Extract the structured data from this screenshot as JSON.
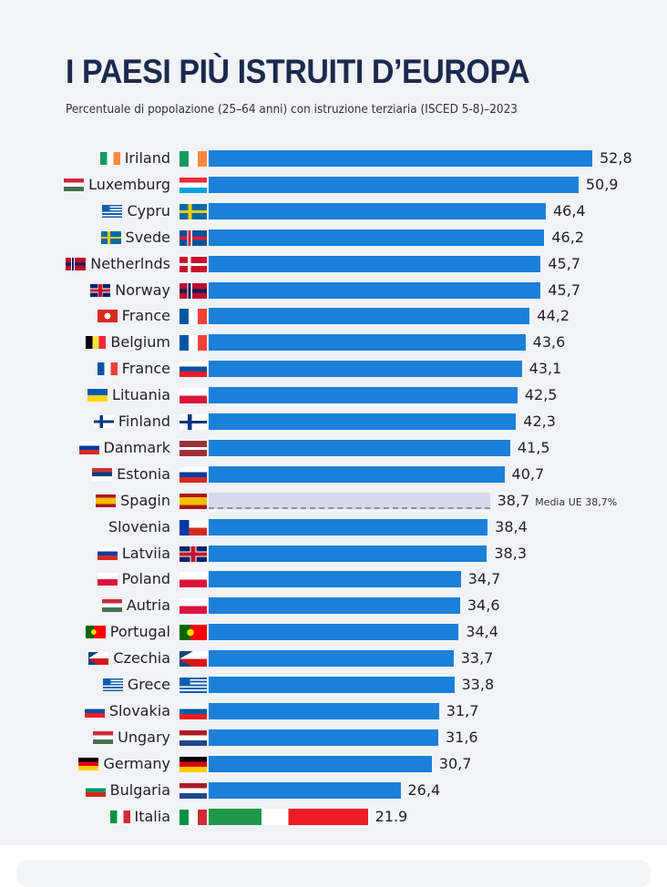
{
  "chart_data": {
    "type": "bar",
    "orientation": "horizontal",
    "title": "I PAESI PIÙ ISTRUITI D’EUROPA",
    "subtitle": "Percentuale di popolazione (25–64 anni) con istruzione terziaria (ISCED 5-8)–2023",
    "xlim": [
      0,
      55
    ],
    "grid": false,
    "bar_color": "#1a80d9",
    "average_color": "#d5d9e8",
    "average_note": "Media UE 38,7%",
    "rows": [
      {
        "label": "Iriland",
        "value": 52.8,
        "text": "52,8",
        "left_flag": "ireland",
        "right_flag": "ireland"
      },
      {
        "label": "Luxemburg",
        "value": 50.9,
        "text": "50,9",
        "left_flag": "hungary",
        "right_flag": "luxembourg"
      },
      {
        "label": "Cypru",
        "value": 46.4,
        "text": "46,4",
        "left_flag": "greece",
        "right_flag": "sweden"
      },
      {
        "label": "Svede",
        "value": 46.2,
        "text": "46,2",
        "left_flag": "sweden",
        "right_flag": "iceland"
      },
      {
        "label": "Netherlnds",
        "value": 45.7,
        "text": "45,7",
        "left_flag": "norway",
        "right_flag": "denmark"
      },
      {
        "label": "Norway",
        "value": 45.7,
        "text": "45,7",
        "left_flag": "uk",
        "right_flag": "norway"
      },
      {
        "label": "France",
        "value": 44.2,
        "text": "44,2",
        "left_flag": "switzerland",
        "right_flag": "france"
      },
      {
        "label": "Belgium",
        "value": 43.6,
        "text": "43,6",
        "left_flag": "belgium",
        "right_flag": "france"
      },
      {
        "label": "France",
        "value": 43.1,
        "text": "43,1",
        "left_flag": "france",
        "right_flag": "slovakia"
      },
      {
        "label": "Lituania",
        "value": 42.5,
        "text": "42,5",
        "left_flag": "ukraine",
        "right_flag": "poland"
      },
      {
        "label": "Finland",
        "value": 42.3,
        "text": "42,3",
        "left_flag": "finland",
        "right_flag": "finland"
      },
      {
        "label": "Danmark",
        "value": 41.5,
        "text": "41,5",
        "left_flag": "russia",
        "right_flag": "latvia"
      },
      {
        "label": "Estonia",
        "value": 40.7,
        "text": "40,7",
        "left_flag": "serbia",
        "right_flag": "russia"
      },
      {
        "label": "Spagin",
        "value": 38.7,
        "text": "38,7",
        "left_flag": "spain",
        "right_flag": "spain",
        "average": true
      },
      {
        "label": "Slovenia",
        "value": 38.4,
        "text": "38,4",
        "left_flag": "",
        "right_flag": "chile"
      },
      {
        "label": "Latviia",
        "value": 38.3,
        "text": "38,3",
        "left_flag": "russia",
        "right_flag": "uk"
      },
      {
        "label": "Poland",
        "value": 34.7,
        "text": "34,7",
        "left_flag": "poland",
        "right_flag": "poland"
      },
      {
        "label": "Autria",
        "value": 34.6,
        "text": "34,6",
        "left_flag": "hungary",
        "right_flag": "poland"
      },
      {
        "label": "Portugal",
        "value": 34.4,
        "text": "34,4",
        "left_flag": "portugal",
        "right_flag": "portugal"
      },
      {
        "label": "Czechia",
        "value": 33.7,
        "text": "33,7",
        "left_flag": "czech",
        "right_flag": "czech"
      },
      {
        "label": "Grece",
        "value": 33.8,
        "text": "33,8",
        "left_flag": "greece",
        "right_flag": "greece"
      },
      {
        "label": "Slovakia",
        "value": 31.7,
        "text": "31,7",
        "left_flag": "slovakia",
        "right_flag": "slovenia"
      },
      {
        "label": "Ungary",
        "value": 31.6,
        "text": "31,6",
        "left_flag": "hungary",
        "right_flag": "netherlands"
      },
      {
        "label": "Germany",
        "value": 30.7,
        "text": "30,7",
        "left_flag": "germany",
        "right_flag": "germany"
      },
      {
        "label": "Bulgaria",
        "value": 26.4,
        "text": "26,4",
        "left_flag": "bulgaria",
        "right_flag": "netherlands"
      },
      {
        "label": "Italia",
        "value": 21.9,
        "text": "21.9",
        "left_flag": "italy",
        "right_flag": "italy",
        "tricolor_bar": true
      }
    ]
  }
}
